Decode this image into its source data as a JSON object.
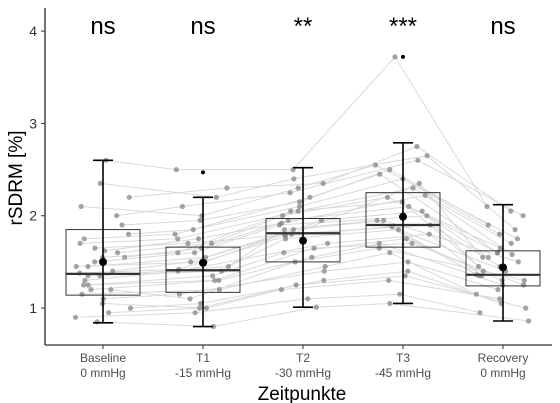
{
  "chart_data": {
    "type": "box",
    "ylabel": "rSDRM [%]",
    "xlabel": "Zeitpunkte",
    "ylim": [
      0.6,
      4.25
    ],
    "yticks": [
      "1",
      "2",
      "3",
      "4"
    ],
    "grid": false,
    "categories": [
      {
        "line1": "Baseline",
        "line2": "0 mmHg"
      },
      {
        "line1": "T1",
        "line2": "-15 mmHg"
      },
      {
        "line1": "T2",
        "line2": "-30 mmHg"
      },
      {
        "line1": "T3",
        "line2": "-45 mmHg"
      },
      {
        "line1": "Recovery",
        "line2": "0 mmHg"
      }
    ],
    "significance": [
      "ns",
      "ns",
      "**",
      "***",
      "ns"
    ],
    "boxes": [
      {
        "q1": 1.14,
        "median": 1.37,
        "q3": 1.85,
        "whisker_low": 0.84,
        "whisker_high": 2.6,
        "mean": 1.5,
        "sd_low": 0.84,
        "sd_high": 2.6
      },
      {
        "q1": 1.17,
        "median": 1.41,
        "q3": 1.66,
        "whisker_low": 0.8,
        "whisker_high": 2.2,
        "mean": 1.49,
        "sd_low": 0.8,
        "sd_high": 2.2,
        "outliers": [
          2.47
        ]
      },
      {
        "q1": 1.5,
        "median": 1.81,
        "q3": 1.97,
        "whisker_low": 1.01,
        "whisker_high": 2.52,
        "mean": 1.73,
        "sd_low": 1.01,
        "sd_high": 2.52
      },
      {
        "q1": 1.66,
        "median": 1.9,
        "q3": 2.25,
        "whisker_low": 1.05,
        "whisker_high": 2.79,
        "mean": 1.99,
        "sd_low": 1.05,
        "sd_high": 2.79,
        "outliers": [
          3.72
        ]
      },
      {
        "q1": 1.24,
        "median": 1.36,
        "q3": 1.62,
        "whisker_low": 0.86,
        "whisker_high": 2.12,
        "mean": 1.44,
        "sd_low": 0.86,
        "sd_high": 2.12
      }
    ],
    "subjects": [
      [
        1.05,
        1.0,
        1.2,
        1.3,
        1.1
      ],
      [
        1.1,
        1.15,
        1.4,
        1.5,
        1.2
      ],
      [
        1.2,
        1.3,
        1.55,
        1.7,
        1.25
      ],
      [
        1.25,
        1.35,
        1.6,
        1.75,
        1.3
      ],
      [
        1.3,
        1.4,
        1.7,
        1.8,
        1.35
      ],
      [
        1.35,
        1.45,
        1.75,
        1.85,
        1.4
      ],
      [
        1.4,
        1.5,
        1.8,
        1.9,
        1.45
      ],
      [
        1.45,
        1.55,
        1.85,
        1.95,
        1.5
      ],
      [
        1.5,
        1.6,
        1.9,
        2.0,
        1.55
      ],
      [
        1.55,
        1.65,
        1.95,
        2.1,
        1.6
      ],
      [
        1.6,
        1.7,
        2.0,
        2.2,
        1.65
      ],
      [
        1.7,
        1.75,
        2.05,
        2.3,
        1.7
      ],
      [
        1.8,
        1.85,
        2.1,
        2.4,
        1.8
      ],
      [
        1.9,
        1.95,
        2.15,
        2.5,
        1.9
      ],
      [
        2.0,
        2.1,
        2.25,
        2.6,
        2.0
      ],
      [
        2.2,
        2.3,
        2.35,
        2.75,
        2.05
      ],
      [
        2.6,
        2.5,
        2.5,
        3.72,
        2.1
      ],
      [
        0.85,
        0.8,
        1.01,
        1.05,
        0.86
      ],
      [
        0.9,
        0.95,
        1.1,
        1.15,
        0.95
      ],
      [
        1.0,
        1.05,
        1.3,
        1.4,
        1.05
      ],
      [
        1.15,
        1.2,
        1.45,
        1.6,
        1.15
      ],
      [
        1.25,
        1.3,
        1.65,
        1.7,
        1.25
      ],
      [
        1.35,
        1.4,
        1.85,
        1.95,
        1.35
      ],
      [
        1.45,
        1.5,
        1.95,
        2.05,
        1.4
      ],
      [
        1.55,
        1.6,
        2.05,
        2.15,
        1.45
      ],
      [
        1.65,
        1.7,
        1.8,
        2.35,
        1.55
      ],
      [
        1.75,
        1.8,
        2.2,
        2.45,
        1.6
      ],
      [
        2.1,
        2.0,
        2.3,
        2.55,
        1.75
      ],
      [
        2.35,
        2.2,
        2.4,
        2.65,
        1.85
      ],
      [
        1.2,
        1.1,
        1.5,
        1.65,
        1.3
      ],
      [
        1.38,
        1.42,
        1.78,
        1.88,
        1.36
      ],
      [
        0.95,
        1.0,
        1.25,
        1.35,
        1.0
      ],
      [
        1.62,
        1.75,
        1.92,
        2.22,
        1.58
      ]
    ],
    "colors": {
      "box": "#333333",
      "median": "#333333",
      "points": "#7f7f7f",
      "lines": "#d9d9d9",
      "mean": "#000000"
    }
  }
}
